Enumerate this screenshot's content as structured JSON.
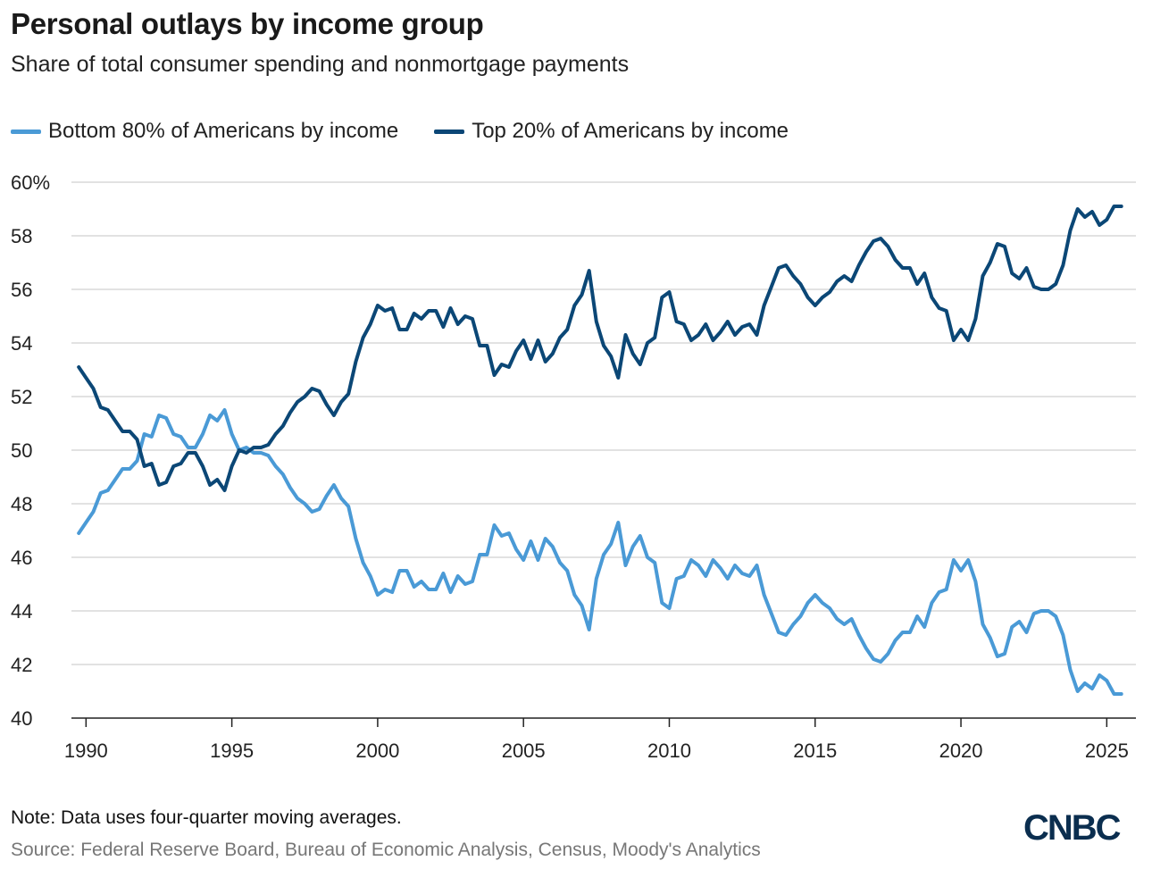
{
  "title": "Personal outlays by income group",
  "subtitle": "Share of total consumer spending and nonmortgage payments",
  "note": "Note: Data uses four-quarter moving averages.",
  "source": "Source: Federal Reserve Board, Bureau of Economic Analysis, Census, Moody's Analytics",
  "logo": "CNBC",
  "colors": {
    "bottom80": "#4a9ad6",
    "top20": "#0b4776",
    "grid": "#d0d0d0",
    "logo": "#0b2e4f"
  },
  "chart_data": {
    "type": "line",
    "title": "Personal outlays by income group",
    "xlabel": "",
    "ylabel": "",
    "xlim": [
      1989.5,
      2026.0
    ],
    "ylim": [
      40,
      60
    ],
    "yticks": [
      40,
      42,
      44,
      46,
      48,
      50,
      52,
      54,
      56,
      58,
      60
    ],
    "ytick_labels": [
      "40",
      "42",
      "44",
      "46",
      "48",
      "50",
      "52",
      "54",
      "56",
      "58",
      "60%"
    ],
    "xticks": [
      1990,
      1995,
      2000,
      2005,
      2010,
      2015,
      2020,
      2025
    ],
    "xtick_labels": [
      "1990",
      "1995",
      "2000",
      "2005",
      "2010",
      "2015",
      "2020",
      "2025"
    ],
    "grid": true,
    "legend_position": "top-left",
    "series": [
      {
        "name": "Bottom 80% of Americans by income",
        "color": "#4a9ad6",
        "x": [
          1989.75,
          1990.0,
          1990.25,
          1990.5,
          1990.75,
          1991.0,
          1991.25,
          1991.5,
          1991.75,
          1992.0,
          1992.25,
          1992.5,
          1992.75,
          1993.0,
          1993.25,
          1993.5,
          1993.75,
          1994.0,
          1994.25,
          1994.5,
          1994.75,
          1995.0,
          1995.25,
          1995.5,
          1995.75,
          1996.0,
          1996.25,
          1996.5,
          1996.75,
          1997.0,
          1997.25,
          1997.5,
          1997.75,
          1998.0,
          1998.25,
          1998.5,
          1998.75,
          1999.0,
          1999.25,
          1999.5,
          1999.75,
          2000.0,
          2000.25,
          2000.5,
          2000.75,
          2001.0,
          2001.25,
          2001.5,
          2001.75,
          2002.0,
          2002.25,
          2002.5,
          2002.75,
          2003.0,
          2003.25,
          2003.5,
          2003.75,
          2004.0,
          2004.25,
          2004.5,
          2004.75,
          2005.0,
          2005.25,
          2005.5,
          2005.75,
          2006.0,
          2006.25,
          2006.5,
          2006.75,
          2007.0,
          2007.25,
          2007.5,
          2007.75,
          2008.0,
          2008.25,
          2008.5,
          2008.75,
          2009.0,
          2009.25,
          2009.5,
          2009.75,
          2010.0,
          2010.25,
          2010.5,
          2010.75,
          2011.0,
          2011.25,
          2011.5,
          2011.75,
          2012.0,
          2012.25,
          2012.5,
          2012.75,
          2013.0,
          2013.25,
          2013.5,
          2013.75,
          2014.0,
          2014.25,
          2014.5,
          2014.75,
          2015.0,
          2015.25,
          2015.5,
          2015.75,
          2016.0,
          2016.25,
          2016.5,
          2016.75,
          2017.0,
          2017.25,
          2017.5,
          2017.75,
          2018.0,
          2018.25,
          2018.5,
          2018.75,
          2019.0,
          2019.25,
          2019.5,
          2019.75,
          2020.0,
          2020.25,
          2020.5,
          2020.75,
          2021.0,
          2021.25,
          2021.5,
          2021.75,
          2022.0,
          2022.25,
          2022.5,
          2022.75,
          2023.0,
          2023.25,
          2023.5,
          2023.75,
          2024.0,
          2024.25,
          2024.5,
          2024.75,
          2025.0,
          2025.25,
          2025.5
        ],
        "values": [
          46.9,
          47.3,
          47.7,
          48.4,
          48.5,
          48.9,
          49.3,
          49.3,
          49.6,
          50.6,
          50.5,
          51.3,
          51.2,
          50.6,
          50.5,
          50.1,
          50.1,
          50.6,
          51.3,
          51.1,
          51.5,
          50.6,
          50.0,
          50.1,
          49.9,
          49.9,
          49.8,
          49.4,
          49.1,
          48.6,
          48.2,
          48.0,
          47.7,
          47.8,
          48.3,
          48.7,
          48.2,
          47.9,
          46.7,
          45.8,
          45.3,
          44.6,
          44.8,
          44.7,
          45.5,
          45.5,
          44.9,
          45.1,
          44.8,
          44.8,
          45.4,
          44.7,
          45.3,
          45.0,
          45.1,
          46.1,
          46.1,
          47.2,
          46.8,
          46.9,
          46.3,
          45.9,
          46.6,
          45.9,
          46.7,
          46.4,
          45.8,
          45.5,
          44.6,
          44.2,
          43.3,
          45.2,
          46.1,
          46.5,
          47.3,
          45.7,
          46.4,
          46.8,
          46.0,
          45.8,
          44.3,
          44.1,
          45.2,
          45.3,
          45.9,
          45.7,
          45.3,
          45.9,
          45.6,
          45.2,
          45.7,
          45.4,
          45.3,
          45.7,
          44.6,
          43.9,
          43.2,
          43.1,
          43.5,
          43.8,
          44.3,
          44.6,
          44.3,
          44.1,
          43.7,
          43.5,
          43.7,
          43.1,
          42.6,
          42.2,
          42.1,
          42.4,
          42.9,
          43.2,
          43.2,
          43.8,
          43.4,
          44.3,
          44.7,
          44.8,
          45.9,
          45.5,
          45.9,
          45.1,
          43.5,
          43.0,
          42.3,
          42.4,
          43.4,
          43.6,
          43.2,
          43.9,
          44.0,
          44.0,
          43.8,
          43.1,
          41.8,
          41.0,
          41.3,
          41.1,
          41.6,
          41.4,
          40.9,
          40.9
        ]
      },
      {
        "name": "Top 20% of Americans by income",
        "color": "#0b4776",
        "x": [
          1989.75,
          1990.0,
          1990.25,
          1990.5,
          1990.75,
          1991.0,
          1991.25,
          1991.5,
          1991.75,
          1992.0,
          1992.25,
          1992.5,
          1992.75,
          1993.0,
          1993.25,
          1993.5,
          1993.75,
          1994.0,
          1994.25,
          1994.5,
          1994.75,
          1995.0,
          1995.25,
          1995.5,
          1995.75,
          1996.0,
          1996.25,
          1996.5,
          1996.75,
          1997.0,
          1997.25,
          1997.5,
          1997.75,
          1998.0,
          1998.25,
          1998.5,
          1998.75,
          1999.0,
          1999.25,
          1999.5,
          1999.75,
          2000.0,
          2000.25,
          2000.5,
          2000.75,
          2001.0,
          2001.25,
          2001.5,
          2001.75,
          2002.0,
          2002.25,
          2002.5,
          2002.75,
          2003.0,
          2003.25,
          2003.5,
          2003.75,
          2004.0,
          2004.25,
          2004.5,
          2004.75,
          2005.0,
          2005.25,
          2005.5,
          2005.75,
          2006.0,
          2006.25,
          2006.5,
          2006.75,
          2007.0,
          2007.25,
          2007.5,
          2007.75,
          2008.0,
          2008.25,
          2008.5,
          2008.75,
          2009.0,
          2009.25,
          2009.5,
          2009.75,
          2010.0,
          2010.25,
          2010.5,
          2010.75,
          2011.0,
          2011.25,
          2011.5,
          2011.75,
          2012.0,
          2012.25,
          2012.5,
          2012.75,
          2013.0,
          2013.25,
          2013.5,
          2013.75,
          2014.0,
          2014.25,
          2014.5,
          2014.75,
          2015.0,
          2015.25,
          2015.5,
          2015.75,
          2016.0,
          2016.25,
          2016.5,
          2016.75,
          2017.0,
          2017.25,
          2017.5,
          2017.75,
          2018.0,
          2018.25,
          2018.5,
          2018.75,
          2019.0,
          2019.25,
          2019.5,
          2019.75,
          2020.0,
          2020.25,
          2020.5,
          2020.75,
          2021.0,
          2021.25,
          2021.5,
          2021.75,
          2022.0,
          2022.25,
          2022.5,
          2022.75,
          2023.0,
          2023.25,
          2023.5,
          2023.75,
          2024.0,
          2024.25,
          2024.5,
          2024.75,
          2025.0,
          2025.25,
          2025.5
        ],
        "values": [
          53.1,
          52.7,
          52.3,
          51.6,
          51.5,
          51.1,
          50.7,
          50.7,
          50.4,
          49.4,
          49.5,
          48.7,
          48.8,
          49.4,
          49.5,
          49.9,
          49.9,
          49.4,
          48.7,
          48.9,
          48.5,
          49.4,
          50.0,
          49.9,
          50.1,
          50.1,
          50.2,
          50.6,
          50.9,
          51.4,
          51.8,
          52.0,
          52.3,
          52.2,
          51.7,
          51.3,
          51.8,
          52.1,
          53.3,
          54.2,
          54.7,
          55.4,
          55.2,
          55.3,
          54.5,
          54.5,
          55.1,
          54.9,
          55.2,
          55.2,
          54.6,
          55.3,
          54.7,
          55.0,
          54.9,
          53.9,
          53.9,
          52.8,
          53.2,
          53.1,
          53.7,
          54.1,
          53.4,
          54.1,
          53.3,
          53.6,
          54.2,
          54.5,
          55.4,
          55.8,
          56.7,
          54.8,
          53.9,
          53.5,
          52.7,
          54.3,
          53.6,
          53.2,
          54.0,
          54.2,
          55.7,
          55.9,
          54.8,
          54.7,
          54.1,
          54.3,
          54.7,
          54.1,
          54.4,
          54.8,
          54.3,
          54.6,
          54.7,
          54.3,
          55.4,
          56.1,
          56.8,
          56.9,
          56.5,
          56.2,
          55.7,
          55.4,
          55.7,
          55.9,
          56.3,
          56.5,
          56.3,
          56.9,
          57.4,
          57.8,
          57.9,
          57.6,
          57.1,
          56.8,
          56.8,
          56.2,
          56.6,
          55.7,
          55.3,
          55.2,
          54.1,
          54.5,
          54.1,
          54.9,
          56.5,
          57.0,
          57.7,
          57.6,
          56.6,
          56.4,
          56.8,
          56.1,
          56.0,
          56.0,
          56.2,
          56.9,
          58.2,
          59.0,
          58.7,
          58.9,
          58.4,
          58.6,
          59.1,
          59.1
        ]
      }
    ]
  }
}
